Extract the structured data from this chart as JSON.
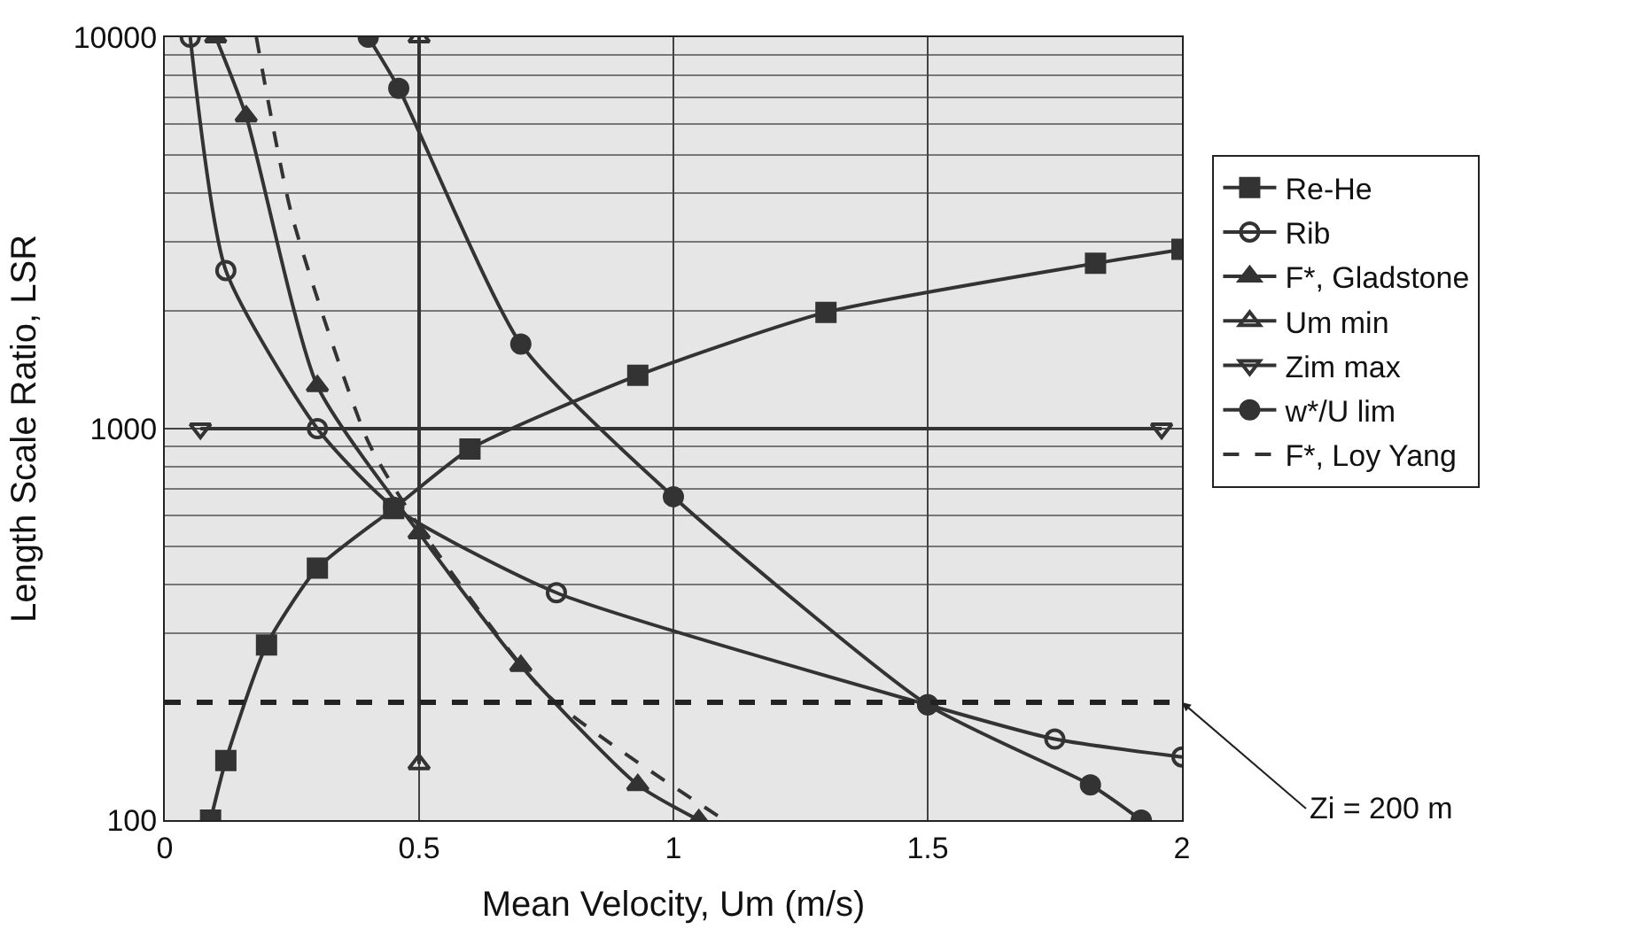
{
  "chart_data": {
    "type": "line",
    "xlabel": "Mean Velocity, Um (m/s)",
    "ylabel": "Length Scale Ratio, LSR",
    "xlim": [
      0,
      2
    ],
    "xticks": [
      0,
      0.5,
      1,
      1.5,
      2
    ],
    "ylim": [
      100,
      10000
    ],
    "yticks": [
      100,
      1000,
      10000
    ],
    "log": true,
    "grid": true,
    "legend": "right",
    "series": [
      {
        "name": "Re-He",
        "color": "#333333",
        "marker": "square",
        "x": [
          0.09,
          0.12,
          0.2,
          0.3,
          0.45,
          0.6,
          0.93,
          1.3,
          1.83,
          2.0
        ],
        "values": [
          100,
          142,
          280,
          440,
          625,
          887,
          1368,
          1982,
          2644,
          2870
        ]
      },
      {
        "name": "Rib",
        "color": "#333333",
        "marker": "circle-open",
        "x": [
          0.05,
          0.12,
          0.3,
          0.45,
          0.77,
          1.5,
          1.75,
          2.0
        ],
        "values": [
          10000,
          2535,
          1000,
          630,
          381,
          197,
          161,
          145
        ]
      },
      {
        "name": "F*, Gladstone",
        "color": "#333333",
        "marker": "triangle",
        "x": [
          0.1,
          0.16,
          0.3,
          0.5,
          0.7,
          0.93,
          1.05
        ],
        "values": [
          10000,
          6280,
          1285,
          541,
          248,
          123,
          100
        ]
      },
      {
        "name": "Um min",
        "color": "#333333",
        "marker": "triangle-open",
        "x": [
          0.5,
          0.5
        ],
        "values": [
          10000,
          139
        ]
      },
      {
        "name": "Zim max",
        "color": "#333333",
        "marker": "triangle-down-open",
        "x": [
          0.07,
          1.96
        ],
        "values": [
          1000,
          1000
        ]
      },
      {
        "name": "w*/U lim",
        "color": "#333333",
        "marker": "circle",
        "x": [
          0.4,
          0.46,
          0.7,
          1.0,
          1.5,
          1.82,
          1.92
        ],
        "values": [
          10000,
          7400,
          1645,
          670,
          197,
          123,
          100
        ]
      },
      {
        "name": "F*, Loy Yang",
        "color": "#333333",
        "marker": "none",
        "line_style": "dashed",
        "x": [
          0.18,
          0.25,
          0.4,
          0.5,
          0.75,
          1.1
        ],
        "values": [
          10000,
          3500,
          925,
          563,
          210,
          100
        ]
      }
    ],
    "ref_lines": [
      {
        "axis": "y",
        "value": 200,
        "label": "Zi = 200 m",
        "line_style": "dashed",
        "color": "#222222"
      }
    ]
  }
}
